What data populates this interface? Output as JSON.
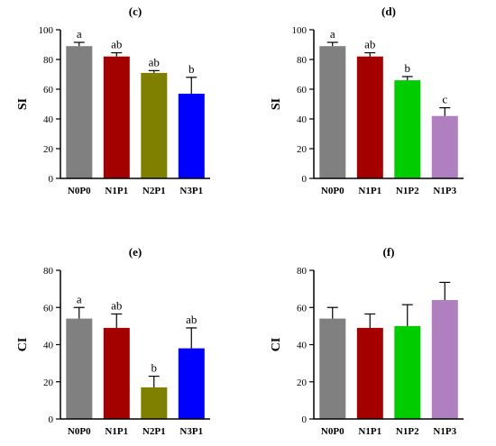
{
  "chart_data": [
    {
      "type": "bar",
      "panel_label": "(c)",
      "ylabel": "SI",
      "ylim": [
        0,
        100
      ],
      "yticks": [
        0,
        20,
        40,
        60,
        80,
        100
      ],
      "categories": [
        "N0P0",
        "N1P1",
        "N2P1",
        "N3P1"
      ],
      "values": [
        89,
        82,
        71,
        57
      ],
      "errors": [
        2.5,
        2.5,
        1.5,
        11
      ],
      "significance": [
        "a",
        "ab",
        "ab",
        "b"
      ],
      "colors": [
        "#808080",
        "#a40000",
        "#808000",
        "#0000ff"
      ],
      "grid": false
    },
    {
      "type": "bar",
      "panel_label": "(d)",
      "ylabel": "SI",
      "ylim": [
        0,
        100
      ],
      "yticks": [
        0,
        20,
        40,
        60,
        80,
        100
      ],
      "categories": [
        "N0P0",
        "N1P1",
        "N1P2",
        "N1P3"
      ],
      "values": [
        89,
        82,
        66,
        42
      ],
      "errors": [
        2.5,
        2.5,
        2.5,
        5.5
      ],
      "significance": [
        "a",
        "ab",
        "b",
        "c"
      ],
      "colors": [
        "#808080",
        "#a40000",
        "#00cc00",
        "#b07fc0"
      ],
      "grid": false
    },
    {
      "type": "bar",
      "panel_label": "(e)",
      "ylabel": "CI",
      "ylim": [
        0,
        80
      ],
      "yticks": [
        0,
        20,
        40,
        60,
        80
      ],
      "categories": [
        "N0P0",
        "N1P1",
        "N2P1",
        "N3P1"
      ],
      "values": [
        54,
        49,
        17,
        38
      ],
      "errors": [
        6,
        7.5,
        6,
        11
      ],
      "significance": [
        "a",
        "ab",
        "b",
        "ab"
      ],
      "colors": [
        "#808080",
        "#a40000",
        "#808000",
        "#0000ff"
      ],
      "grid": false
    },
    {
      "type": "bar",
      "panel_label": "(f)",
      "ylabel": "CI",
      "ylim": [
        0,
        80
      ],
      "yticks": [
        0,
        20,
        40,
        60,
        80
      ],
      "categories": [
        "N0P0",
        "N1P1",
        "N1P2",
        "N1P3"
      ],
      "values": [
        54,
        49,
        50,
        64
      ],
      "errors": [
        6,
        7.5,
        11.5,
        9.5
      ],
      "significance": [
        "",
        "",
        "",
        ""
      ],
      "colors": [
        "#808080",
        "#a40000",
        "#00cc00",
        "#b07fc0"
      ],
      "grid": false
    }
  ]
}
